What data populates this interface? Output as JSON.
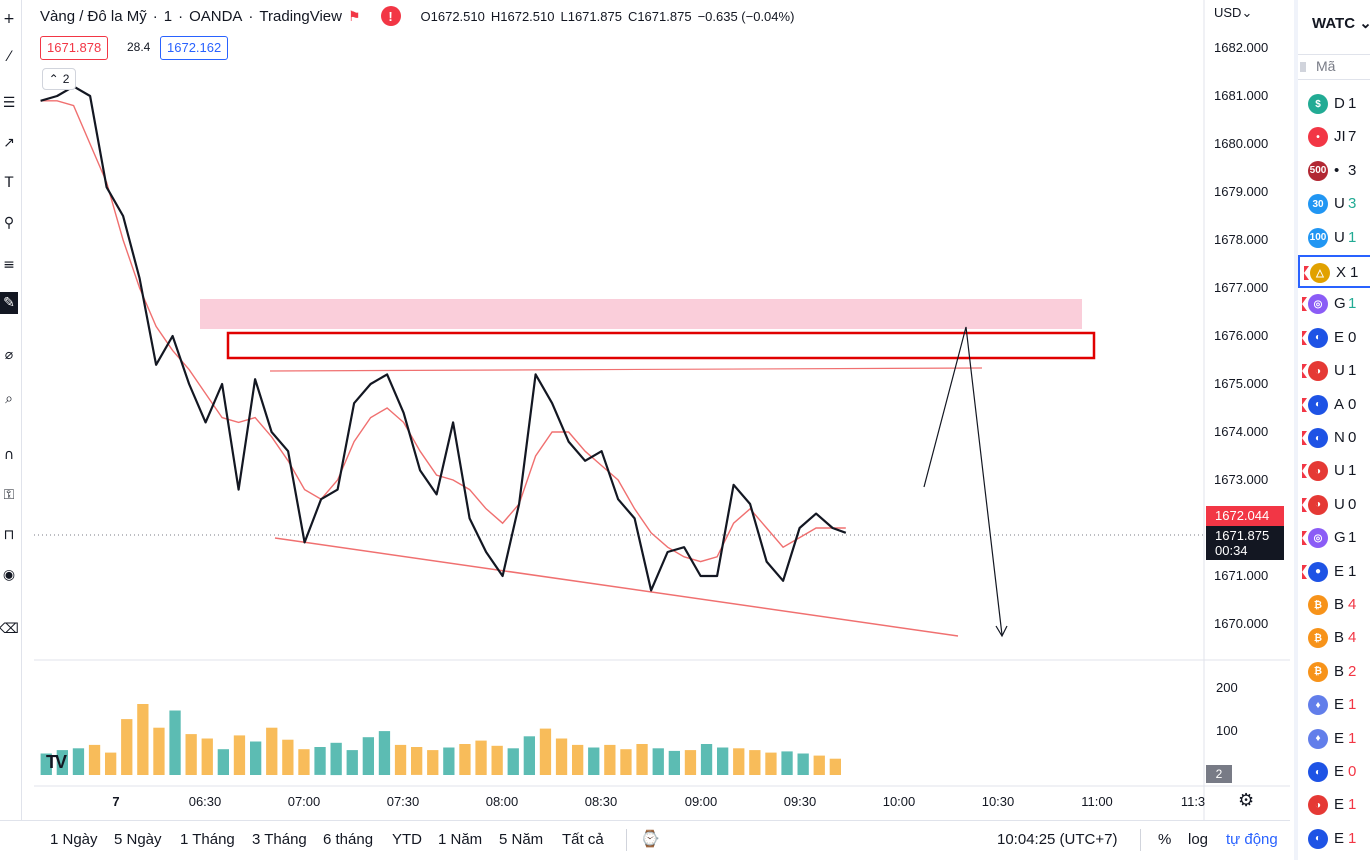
{
  "legend": {
    "symbol": "Vàng / Đô la Mỹ",
    "interval": "1",
    "broker": "OANDA",
    "platform": "TradingView",
    "open": "O1672.510",
    "high": "H1672.510",
    "low": "L1671.875",
    "close": "C1671.875",
    "change": "−0.635 (−0.04%)",
    "sell_price": "1671.878",
    "spread": "28.4",
    "buy_price": "1672.162",
    "indicators_count": "2"
  },
  "axis": {
    "currency": "USD",
    "price_labels": [
      "1682.000",
      "1681.000",
      "1680.000",
      "1679.000",
      "1678.000",
      "1677.000",
      "1676.000",
      "1675.000",
      "1674.000",
      "1673.000",
      "1672.000",
      "1671.000",
      "1670.000"
    ],
    "price_tag_red": "1672.044",
    "price_tag_black": "1671.875",
    "countdown": "00:34",
    "volume_labels": [
      "200",
      "100"
    ],
    "pane_badge": "2",
    "time_labels": [
      "7",
      "06:30",
      "07:00",
      "07:30",
      "08:00",
      "08:30",
      "09:00",
      "09:30",
      "10:00",
      "10:30",
      "11:00",
      "11:3"
    ]
  },
  "bottom_bar": {
    "ranges": [
      "1 Ngày",
      "5 Ngày",
      "1 Tháng",
      "3 Tháng",
      "6 tháng",
      "YTD",
      "1 Năm",
      "5 Năm",
      "Tất cả"
    ],
    "clock": "10:04:25 (UTC+7)",
    "percent": "%",
    "log": "log",
    "auto": "tự động"
  },
  "watchlist": {
    "title": "WATC",
    "column": "Mã",
    "rows": [
      {
        "sym": "D",
        "val": "1",
        "icon": "$",
        "color": "#22ab94",
        "flag": false
      },
      {
        "sym": "JI",
        "val": "7",
        "icon": "•",
        "color": "#f23645",
        "flag": false
      },
      {
        "sym": "•",
        "val": "3",
        "icon": "500",
        "color": "#b22833",
        "flag": false
      },
      {
        "sym": "U",
        "val": "3",
        "icon": "30",
        "color": "#2196f3",
        "flag": false
      },
      {
        "sym": "U",
        "val": "1",
        "icon": "100",
        "color": "#2196f3",
        "flag": false
      },
      {
        "sym": "X",
        "val": "1",
        "icon": "△",
        "color": "#e1a100",
        "flag": true
      },
      {
        "sym": "G",
        "val": "1",
        "icon": "◎",
        "color": "#8b5cf6",
        "flag": true
      },
      {
        "sym": "E",
        "val": "0",
        "icon": "◐",
        "color": "#1e53e5",
        "flag": true
      },
      {
        "sym": "U",
        "val": "1",
        "icon": "◑",
        "color": "#e53935",
        "flag": true
      },
      {
        "sym": "A",
        "val": "0",
        "icon": "◐",
        "color": "#1e53e5",
        "flag": true
      },
      {
        "sym": "N",
        "val": "0",
        "icon": "◐",
        "color": "#1e53e5",
        "flag": true
      },
      {
        "sym": "U",
        "val": "1",
        "icon": "◑",
        "color": "#e53935",
        "flag": true
      },
      {
        "sym": "U",
        "val": "0",
        "icon": "◑",
        "color": "#e53935",
        "flag": true
      },
      {
        "sym": "G",
        "val": "1",
        "icon": "◎",
        "color": "#8b5cf6",
        "flag": true
      },
      {
        "sym": "E",
        "val": "1",
        "icon": "●",
        "color": "#1e53e5",
        "flag": true
      },
      {
        "sym": "B",
        "val": "4",
        "icon": "₿",
        "color": "#f7931a",
        "flag": false
      },
      {
        "sym": "B",
        "val": "4",
        "icon": "₿",
        "color": "#f7931a",
        "flag": false
      },
      {
        "sym": "B",
        "val": "2",
        "icon": "₿",
        "color": "#f7931a",
        "flag": false
      },
      {
        "sym": "E",
        "val": "1",
        "icon": "♦",
        "color": "#627eea",
        "flag": false
      },
      {
        "sym": "E",
        "val": "1",
        "icon": "♦",
        "color": "#627eea",
        "flag": false
      },
      {
        "sym": "E",
        "val": "0",
        "icon": "◐",
        "color": "#1e53e5",
        "flag": false
      },
      {
        "sym": "E",
        "val": "1",
        "icon": "◑",
        "color": "#e53935",
        "flag": false
      },
      {
        "sym": "E",
        "val": "1",
        "icon": "◐",
        "color": "#1e53e5",
        "flag": false
      }
    ]
  },
  "toolbar": {
    "tools": [
      "crosshair-icon",
      "trendline-icon",
      "fib-icon",
      "arrow-icon",
      "text-icon",
      "node-icon",
      "ruler-settings-icon",
      "brush-icon",
      "measure-icon",
      "zoom-icon",
      "magnet-icon",
      "lock-draw-icon",
      "lock-icon",
      "eye-icon",
      "trash-icon"
    ]
  },
  "chart_data": {
    "type": "line",
    "ylim": [
      1669.3,
      1682.3
    ],
    "xlim": [
      "05:58",
      "11:35"
    ],
    "colors": {
      "price": "#131722",
      "sma": "#f07070",
      "zone": "#f9c9d6",
      "box": "#e00000",
      "trend": "#f07070",
      "up_volume": "#26a69a",
      "down_volume": "#f5a623"
    },
    "series": [
      {
        "x": [
          "06:00",
          "06:05",
          "06:10",
          "06:15",
          "06:20",
          "06:25",
          "06:30",
          "06:35",
          "06:40",
          "06:45",
          "06:50",
          "06:55",
          "07:00",
          "07:05",
          "07:10",
          "07:15",
          "07:20",
          "07:25",
          "07:30",
          "07:35",
          "07:40",
          "07:45",
          "07:50",
          "07:55",
          "08:00",
          "08:05",
          "08:10",
          "08:15",
          "08:20",
          "08:25",
          "08:30",
          "08:35",
          "08:40",
          "08:45",
          "08:50",
          "08:55",
          "09:00",
          "09:05",
          "09:10",
          "09:15",
          "09:20",
          "09:25",
          "09:30",
          "09:35",
          "09:40",
          "09:45",
          "09:50",
          "09:55",
          "10:00",
          "10:04"
        ],
        "values": [
          1680.9,
          1681.0,
          1681.2,
          1681.0,
          1679.1,
          1678.5,
          1677.2,
          1675.4,
          1676.0,
          1675.0,
          1674.2,
          1675.0,
          1672.8,
          1675.1,
          1674.0,
          1673.6,
          1671.7,
          1672.6,
          1672.8,
          1674.6,
          1675.0,
          1675.2,
          1674.4,
          1673.2,
          1672.7,
          1674.2,
          1672.2,
          1671.5,
          1671.0,
          1672.5,
          1675.2,
          1674.6,
          1673.8,
          1673.4,
          1673.6,
          1672.6,
          1672.2,
          1670.7,
          1671.5,
          1671.6,
          1671.0,
          1671.0,
          1672.9,
          1672.5,
          1671.3,
          1670.9,
          1672.0,
          1672.3,
          1672.0,
          1671.9
        ]
      },
      {
        "values": [
          1680.9,
          1680.9,
          1680.8,
          1680.0,
          1679.2,
          1678.0,
          1677.0,
          1676.2,
          1675.7,
          1675.3,
          1674.8,
          1674.3,
          1674.2,
          1674.3,
          1673.9,
          1673.4,
          1672.8,
          1672.6,
          1673.0,
          1673.8,
          1674.3,
          1674.5,
          1674.2,
          1673.6,
          1673.1,
          1673.0,
          1672.8,
          1672.4,
          1672.1,
          1672.5,
          1673.5,
          1674.0,
          1674.0,
          1673.6,
          1673.3,
          1673.0,
          1672.4,
          1671.9,
          1671.6,
          1671.4,
          1671.3,
          1671.4,
          1672.1,
          1672.4,
          1672.0,
          1671.6,
          1671.8,
          1672.0,
          1672.0,
          1672.0
        ]
      }
    ],
    "volume": {
      "ylim": [
        0,
        260
      ],
      "values": [
        50,
        58,
        62,
        70,
        52,
        130,
        165,
        110,
        150,
        95,
        85,
        60,
        92,
        78,
        110,
        82,
        60,
        65,
        75,
        58,
        88,
        102,
        70,
        65,
        58,
        64,
        72,
        80,
        68,
        62,
        90,
        108,
        85,
        70,
        64,
        70,
        60,
        72,
        62,
        56,
        58,
        72,
        64,
        62,
        58,
        52,
        55,
        50,
        45,
        38
      ]
    }
  }
}
